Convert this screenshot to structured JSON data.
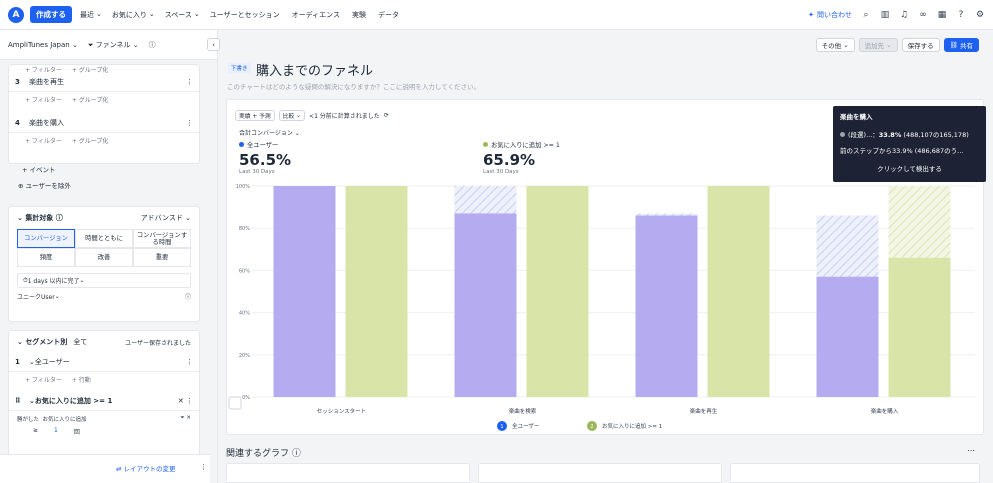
{
  "topbar": {
    "logo": "A",
    "create": "作成する",
    "nav": [
      "最近",
      "お気に入り",
      "スペース",
      "ユーザーとセッション",
      "オーディエンス",
      "実験",
      "データ"
    ],
    "contact": "問い合わせ"
  },
  "sidebar": {
    "project": "AmpliTunes Japan",
    "funnel": "ファンネル",
    "steps": [
      {
        "num": "3",
        "label": "楽曲を再生"
      },
      {
        "num": "4",
        "label": "楽曲を購入"
      }
    ],
    "filter": "+ フィルター",
    "group": "+ グループ化",
    "add_event": "+ イベント",
    "exclude": "ユーザーを除外",
    "agg_title": "集計対象",
    "advanced": "アドバンスド",
    "tabs": [
      "コンバージョン",
      "時間とともに",
      "コンバージョンする時間"
    ],
    "tabs2": [
      "頻度",
      "改善",
      "重要"
    ],
    "window": "1 days 以内に完了",
    "unique": "ユニークUser",
    "seg_title": "セグメント別",
    "seg_all": "全て",
    "seg_note": "ユーザー保存されました",
    "seg1": "全ユーザー",
    "seg1_action": "+ 行動",
    "seg2": "お気に入りに追加 >= 1",
    "seg2_sub": "勝がした",
    "seg2_sub2": "お気に入りに追加",
    "seg2_op": "≥",
    "seg2_val": "1",
    "seg2_unit": "回",
    "layout": "レイアウトの変更"
  },
  "header": {
    "other": "その他",
    "add": "追加先",
    "save": "保存する",
    "share": "共有",
    "draft": "下書き",
    "title": "購入までのファネル",
    "desc": "このチャートはどのような疑問の解決になりますか？ここに説明を入力してください。"
  },
  "controls": {
    "display": "実績 + 予測",
    "compare": "比較",
    "computed": "<1 分前に計算されました",
    "metric": "合計コンバージョン"
  },
  "metrics": [
    {
      "name": "全ユーザー",
      "value": "56.5%",
      "sub": "Last 30 Days"
    },
    {
      "name": "お気に入りに追加 >= 1",
      "value": "65.9%",
      "sub": "Last 30 Days"
    }
  ],
  "tooltip": {
    "title": "楽曲を購入",
    "line1a": "(段選)...：",
    "line1b": "33.8%",
    "line1c": " (488,107の165,178)",
    "line2": "前のステップから33.9% (486,687のう…",
    "cta": "クリックして検出する"
  },
  "related": "関連するグラフ",
  "chart_data": {
    "type": "bar",
    "categories": [
      "セッションスタート",
      "楽曲を検索",
      "楽曲を再生",
      "楽曲を購入"
    ],
    "ylim": [
      0,
      100
    ],
    "y_ticks": [
      "0%",
      "20%",
      "40%",
      "60%",
      "80%",
      "100%"
    ],
    "series": [
      {
        "name": "全ユーザー",
        "values": [
          100,
          87,
          86,
          57
        ],
        "previous": [
          100,
          100,
          87,
          86
        ],
        "color": "#b4abf0"
      },
      {
        "name": "お気に入りに追加 >= 1",
        "values": [
          100,
          100,
          100,
          66
        ],
        "previous": [
          100,
          100,
          100,
          100
        ],
        "color": "#d9e4a8"
      }
    ],
    "legend_placement": "bottom"
  }
}
